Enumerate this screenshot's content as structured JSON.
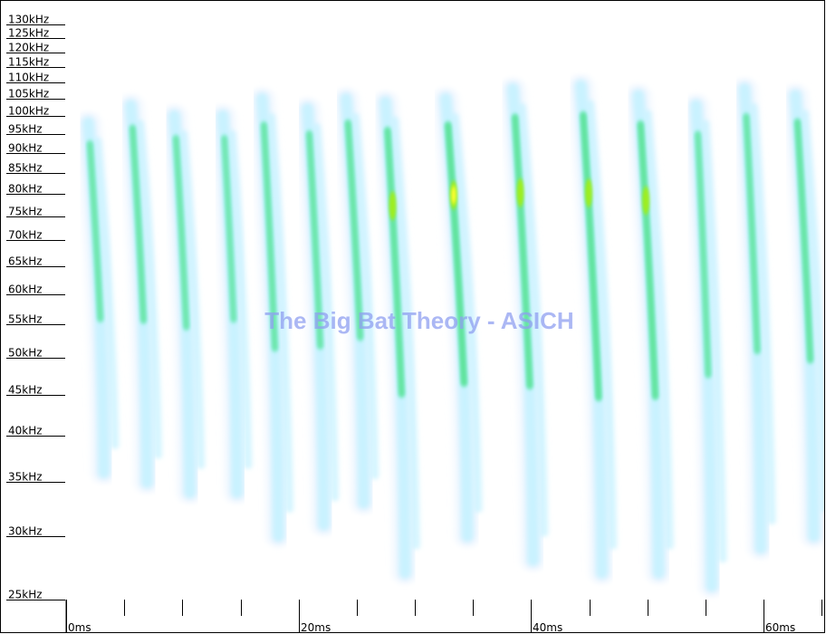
{
  "chart_data": {
    "type": "spectrogram",
    "watermark": "The Big Bat Theory - ASICH",
    "y_axis": {
      "unit": "kHz",
      "range": [
        25,
        130
      ],
      "scale": "log",
      "ticks": [
        25,
        30,
        35,
        40,
        45,
        50,
        55,
        60,
        65,
        70,
        75,
        80,
        85,
        90,
        95,
        100,
        105,
        110,
        115,
        120,
        125,
        130
      ],
      "tick_labels": [
        "25kHz",
        "30kHz",
        "35kHz",
        "40kHz",
        "45kHz",
        "50kHz",
        "55kHz",
        "60kHz",
        "65kHz",
        "70kHz",
        "75kHz",
        "80kHz",
        "85kHz",
        "90kHz",
        "95kHz",
        "100kHz",
        "105kHz",
        "110kHz",
        "115kHz",
        "120kHz",
        "125kHz",
        "130kHz"
      ]
    },
    "x_axis": {
      "unit": "ms",
      "range": [
        0,
        65
      ],
      "major_ticks": [
        0,
        20,
        40,
        60
      ],
      "major_labels": [
        "0ms",
        "20ms",
        "40ms",
        "60ms"
      ],
      "minor_step": 5
    },
    "colormap": [
      "#ffffff",
      "#eaf4ff",
      "#c9f2ff",
      "#9ff0e8",
      "#5ee39a",
      "#3fd452",
      "#aaf000",
      "#ffff33"
    ],
    "calls": [
      {
        "time_ms": 2.8,
        "f_start_khz": 98,
        "f_end_khz": 36,
        "intensity": 0.55
      },
      {
        "time_ms": 6.5,
        "f_start_khz": 103,
        "f_end_khz": 35,
        "intensity": 0.6
      },
      {
        "time_ms": 10.2,
        "f_start_khz": 100,
        "f_end_khz": 34,
        "intensity": 0.55
      },
      {
        "time_ms": 14.3,
        "f_start_khz": 100,
        "f_end_khz": 34,
        "intensity": 0.45
      },
      {
        "time_ms": 17.8,
        "f_start_khz": 105,
        "f_end_khz": 30,
        "intensity": 0.6
      },
      {
        "time_ms": 21.7,
        "f_start_khz": 102,
        "f_end_khz": 31,
        "intensity": 0.6
      },
      {
        "time_ms": 25.1,
        "f_start_khz": 105,
        "f_end_khz": 33,
        "intensity": 0.7
      },
      {
        "time_ms": 28.6,
        "f_start_khz": 104,
        "f_end_khz": 27,
        "intensity": 0.85
      },
      {
        "time_ms": 33.9,
        "f_start_khz": 105,
        "f_end_khz": 30,
        "intensity": 1.0
      },
      {
        "time_ms": 39.6,
        "f_start_khz": 108,
        "f_end_khz": 28,
        "intensity": 0.9
      },
      {
        "time_ms": 45.5,
        "f_start_khz": 109,
        "f_end_khz": 27,
        "intensity": 0.95
      },
      {
        "time_ms": 50.4,
        "f_start_khz": 106,
        "f_end_khz": 27,
        "intensity": 0.9
      },
      {
        "time_ms": 55.1,
        "f_start_khz": 103,
        "f_end_khz": 26,
        "intensity": 0.55
      },
      {
        "time_ms": 59.3,
        "f_start_khz": 108,
        "f_end_khz": 29,
        "intensity": 0.6
      },
      {
        "time_ms": 63.8,
        "f_start_khz": 106,
        "f_end_khz": 30,
        "intensity": 0.75
      }
    ]
  }
}
